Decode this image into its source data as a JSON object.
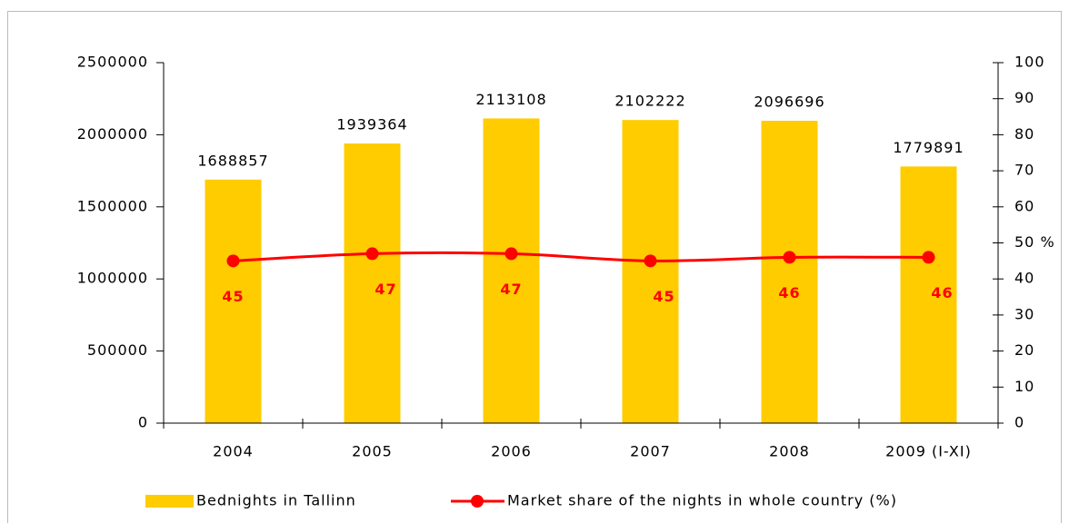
{
  "chart_data": {
    "type": "bar_line",
    "categories": [
      "2004",
      "2005",
      "2006",
      "2007",
      "2008",
      "2009 (I-XI)"
    ],
    "series": [
      {
        "name": "Bednights in Tallinn",
        "color": "#ffcc00",
        "type": "bar",
        "values": [
          1688857,
          1939364,
          2113108,
          2102222,
          2096696,
          1779891
        ]
      },
      {
        "name": "Market share of the nights in whole country (%)",
        "color": "#ff0000",
        "type": "line",
        "axis": "y2",
        "values": [
          45,
          47,
          47,
          45,
          46,
          46
        ]
      }
    ],
    "ylim": [
      0,
      2500000
    ],
    "yticks": [
      0,
      500000,
      1000000,
      1500000,
      2000000,
      2500000
    ],
    "y2lim": [
      0,
      100
    ],
    "y2ticks": [
      0,
      10,
      20,
      30,
      40,
      {
        "value": 50,
        "label": "50 %"
      },
      60,
      70,
      80,
      90,
      100
    ],
    "legend": "bottom"
  }
}
